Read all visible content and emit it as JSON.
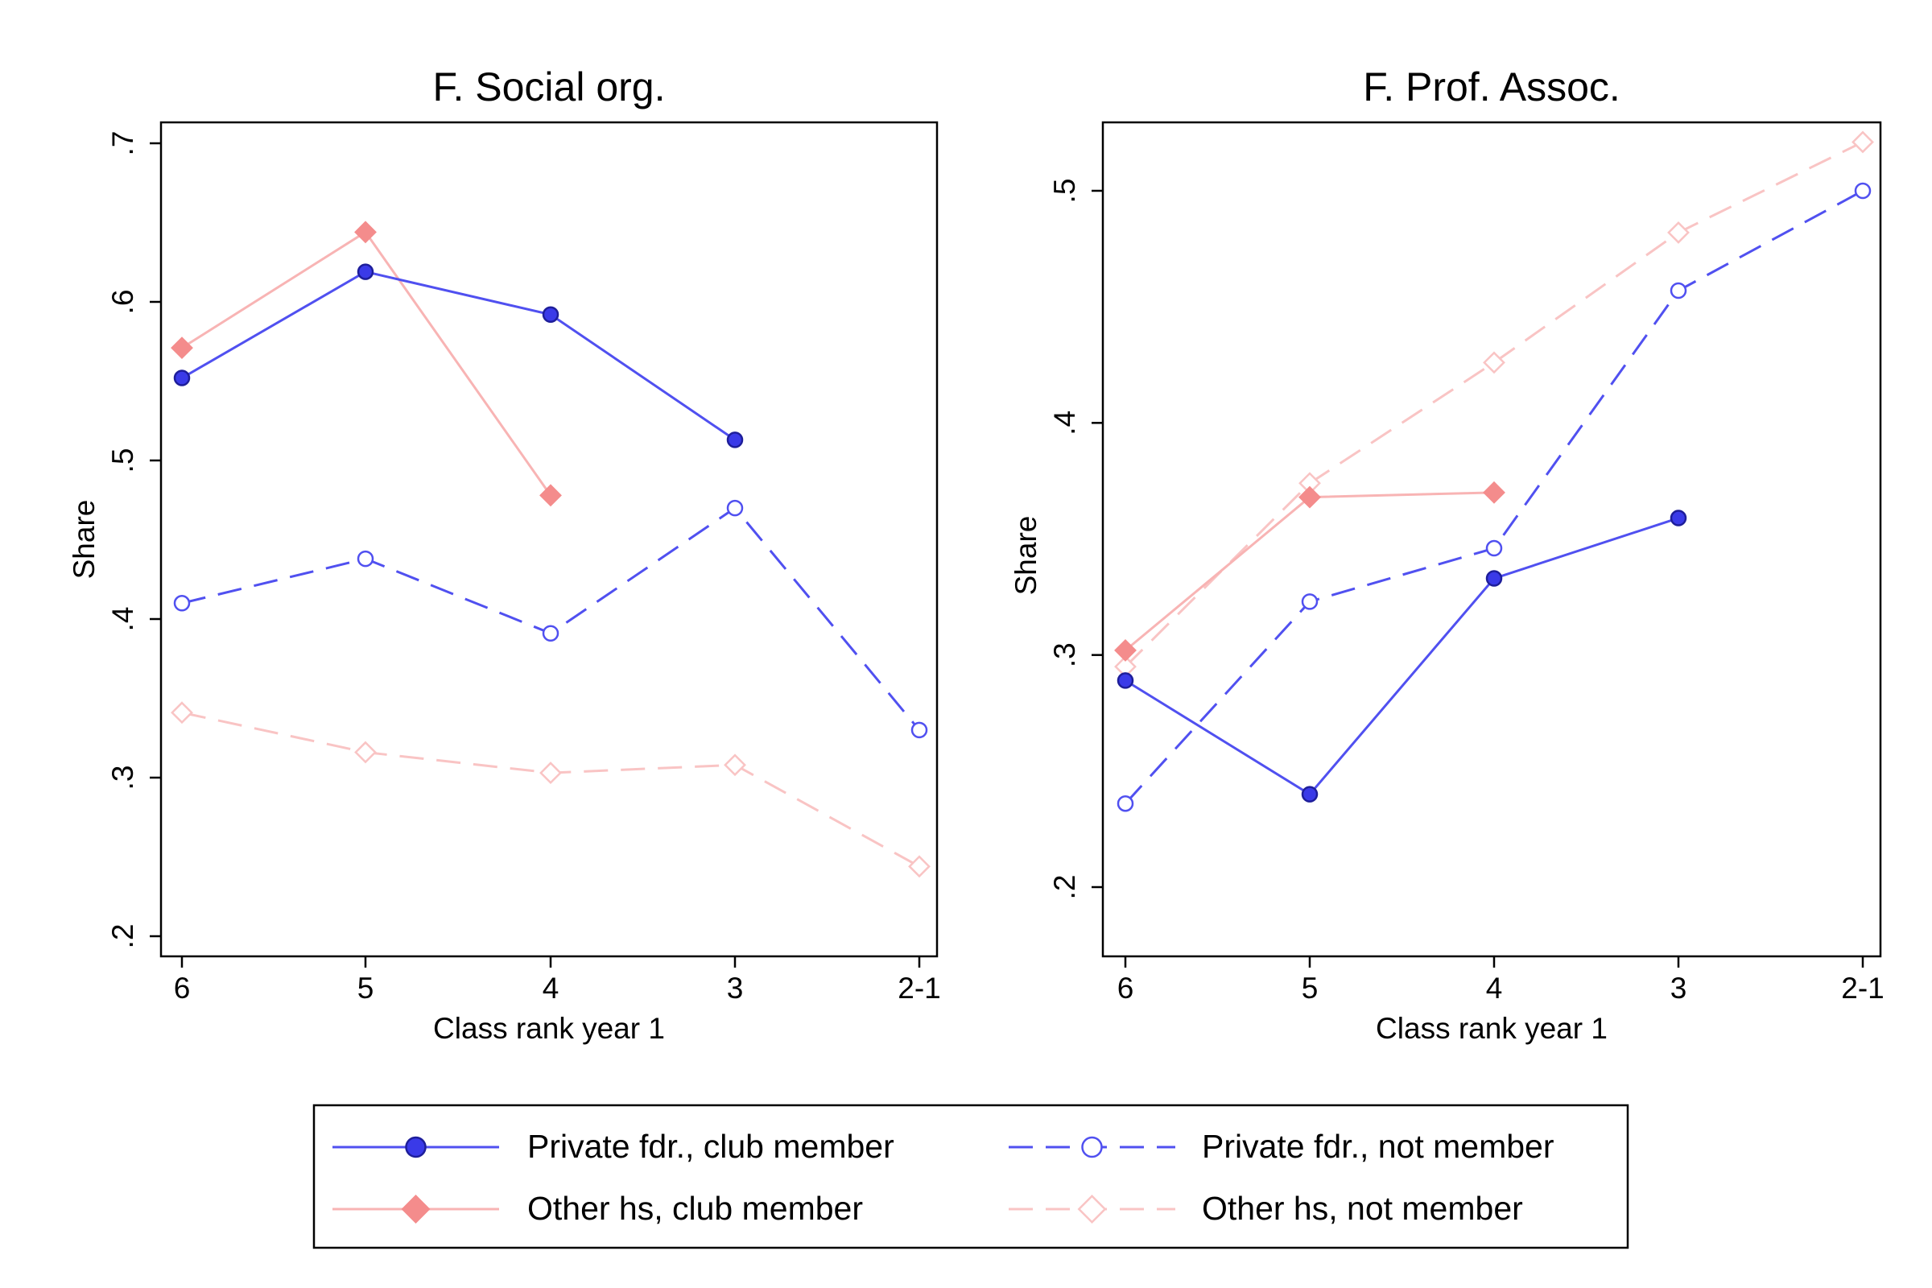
{
  "colors": {
    "private_fdr": "#5050f0",
    "private_fdr_marker": "#3a3ae8",
    "other_hs": "#f8b4b4",
    "other_hs_marker": "#f48c8c",
    "other_hs_faint": "#f9c4c4"
  },
  "chart_data": [
    {
      "type": "line",
      "title": "F. Social org.",
      "xlabel": "Class rank year 1",
      "ylabel": "Share",
      "categories": [
        "6",
        "5",
        "4",
        "3",
        "2-1"
      ],
      "ylim": [
        0.175,
        0.712
      ],
      "yticks": [
        0.2,
        0.3,
        0.4,
        0.5,
        0.6,
        0.7
      ],
      "ytick_labels": [
        ".2",
        ".3",
        ".4",
        ".5",
        ".6",
        ".7"
      ],
      "grid": false,
      "series": [
        {
          "name": "Private fdr., club member",
          "style": "solid",
          "marker": "filled-circle",
          "values": [
            0.552,
            0.619,
            0.592,
            0.513,
            null
          ]
        },
        {
          "name": "Private fdr., not member",
          "style": "dashed",
          "marker": "hollow-circle",
          "values": [
            0.41,
            0.438,
            0.391,
            0.47,
            0.33
          ]
        },
        {
          "name": "Other hs, club member",
          "style": "solid",
          "marker": "filled-diamond",
          "values": [
            0.571,
            0.644,
            0.478,
            null,
            null
          ]
        },
        {
          "name": "Other hs, not member",
          "style": "dashed",
          "marker": "hollow-diamond",
          "values": [
            0.341,
            0.316,
            0.303,
            0.308,
            0.244
          ]
        }
      ]
    },
    {
      "type": "line",
      "title": "F. Prof. Assoc.",
      "xlabel": "Class rank year 1",
      "ylabel": "Share",
      "categories": [
        "6",
        "5",
        "4",
        "3",
        "2-1"
      ],
      "ylim": [
        0.169,
        0.53
      ],
      "yticks": [
        0.2,
        0.3,
        0.4,
        0.5
      ],
      "ytick_labels": [
        ".2",
        ".3",
        ".4",
        ".5"
      ],
      "grid": false,
      "series": [
        {
          "name": "Private fdr., club member",
          "style": "solid",
          "marker": "filled-circle",
          "values": [
            0.289,
            0.24,
            0.333,
            0.359,
            null
          ]
        },
        {
          "name": "Private fdr., not member",
          "style": "dashed",
          "marker": "hollow-circle",
          "values": [
            0.236,
            0.323,
            0.346,
            0.457,
            0.5
          ]
        },
        {
          "name": "Other hs, club member",
          "style": "solid",
          "marker": "filled-diamond",
          "values": [
            0.302,
            0.368,
            0.37,
            null,
            null
          ]
        },
        {
          "name": "Other hs, not member",
          "style": "dashed",
          "marker": "hollow-diamond",
          "values": [
            0.295,
            0.374,
            0.426,
            0.482,
            0.521
          ]
        }
      ]
    }
  ],
  "legend": {
    "placement": "bottom",
    "items": [
      {
        "label": "Private fdr., club member",
        "series": 0
      },
      {
        "label": "Private fdr., not member",
        "series": 1
      },
      {
        "label": "Other hs, club member",
        "series": 2
      },
      {
        "label": "Other hs, not member",
        "series": 3
      }
    ]
  }
}
